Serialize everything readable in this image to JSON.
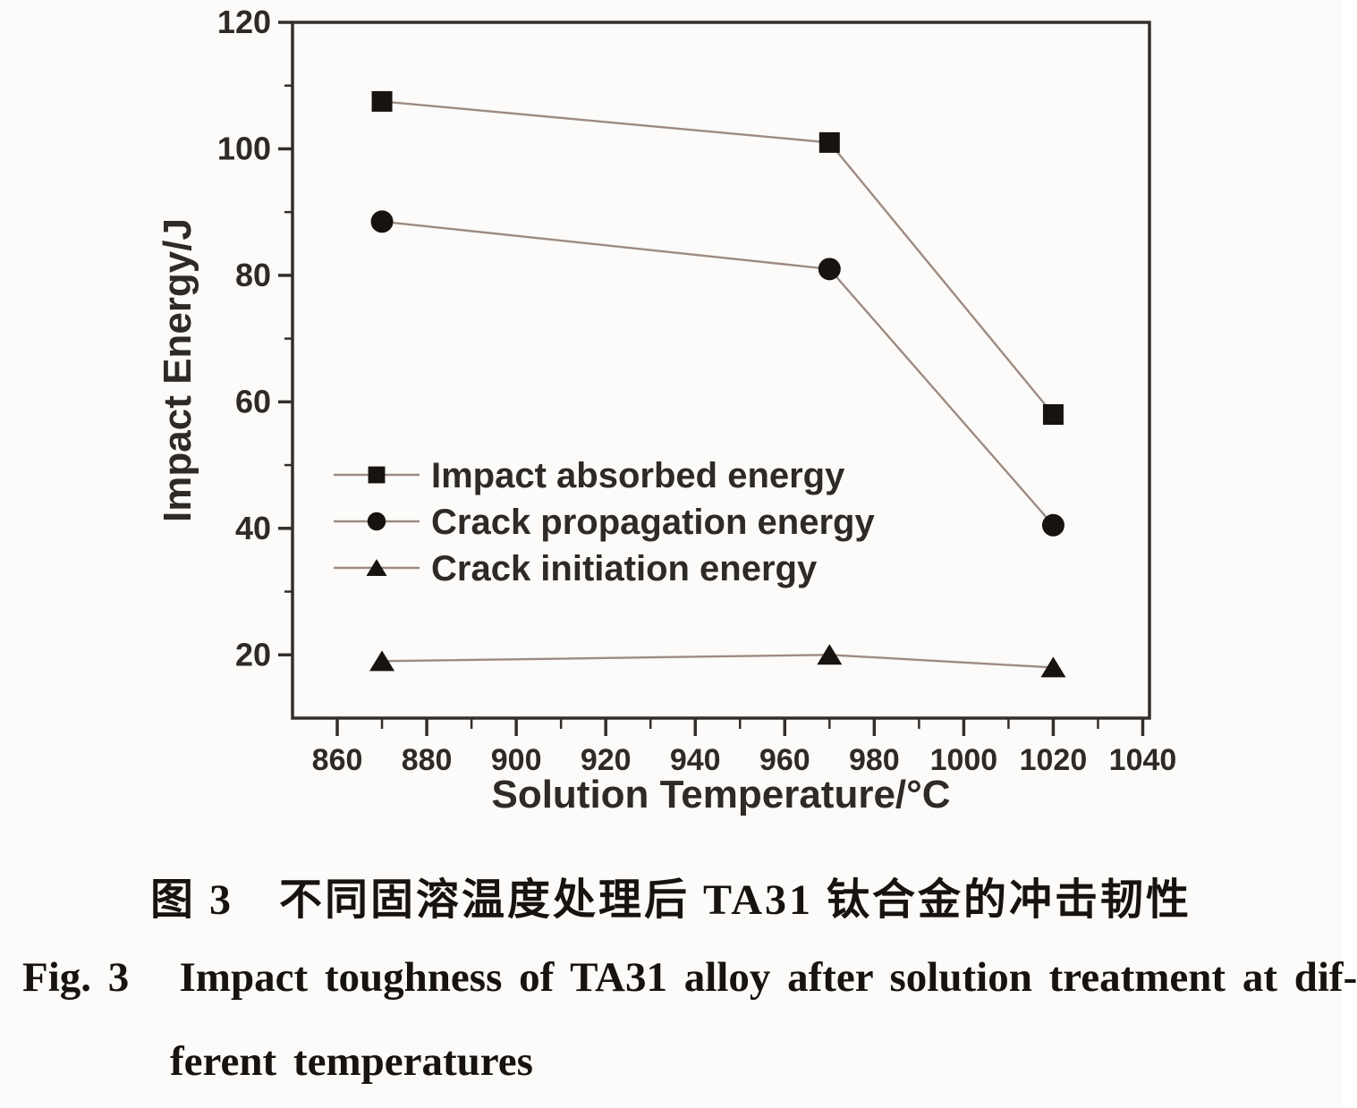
{
  "page": {
    "background": "#fcfbf9"
  },
  "captions": {
    "zh": "图 3　不同固溶温度处理后 TA31 钛合金的冲击韧性",
    "en_line1": "Fig. 3   Impact toughness of TA31 alloy after solution treatment at dif-",
    "en_line2": "ferent temperatures"
  },
  "chart_data": {
    "type": "line",
    "title": "",
    "xlabel": "Solution Temperature/°C",
    "ylabel": "Impact Energy/J",
    "x": [
      870,
      970,
      1020
    ],
    "series": [
      {
        "name": "Impact absorbed energy",
        "marker": "square",
        "values": [
          107.5,
          101,
          58
        ]
      },
      {
        "name": "Crack propagation energy",
        "marker": "circle",
        "values": [
          88.5,
          81,
          40.5
        ]
      },
      {
        "name": "Crack initiation energy",
        "marker": "triangle",
        "values": [
          19,
          20,
          18
        ]
      }
    ],
    "xlim": [
      850,
      1041.5
    ],
    "ylim": [
      10,
      120
    ],
    "x_major_ticks": [
      860,
      880,
      900,
      920,
      940,
      960,
      980,
      1000,
      1020,
      1040
    ],
    "x_minor_ticks": [
      870,
      890,
      910,
      930,
      950,
      970,
      990,
      1010,
      1030
    ],
    "y_major_ticks": [
      20,
      40,
      60,
      80,
      100,
      120
    ],
    "y_minor_ticks": [
      30,
      50,
      70,
      90,
      110
    ],
    "grid": false,
    "legend_position": "inside-left-middle",
    "colors": {
      "line": "#9d8b81",
      "marker": "#17130f",
      "axis": "#332e2a",
      "text": "#2e2a26"
    }
  }
}
